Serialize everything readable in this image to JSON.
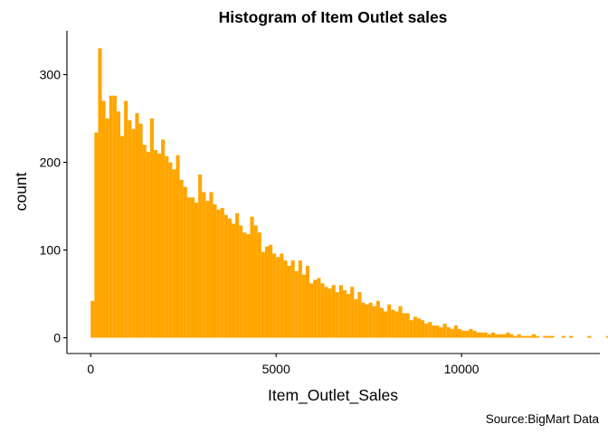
{
  "chart_data": {
    "type": "bar",
    "title": "Histogram of Item Outlet sales",
    "xlabel": "Item_Outlet_Sales",
    "ylabel": "count",
    "caption": "Source:BigMart Data",
    "bar_color": "#FFA500",
    "xlim": [
      -640,
      13730
    ],
    "ylim": [
      -18,
      350
    ],
    "xticks": [
      0,
      5000,
      10000
    ],
    "xtick_labels": [
      "0",
      "5000",
      "10000"
    ],
    "yticks": [
      0,
      100,
      200,
      300
    ],
    "ytick_labels": [
      "0",
      "100",
      "200",
      "300"
    ],
    "bin_width": 100,
    "bin_start": 0,
    "grid": false,
    "legend": "none",
    "values": [
      42,
      234,
      330,
      270,
      250,
      276,
      276,
      258,
      230,
      270,
      248,
      238,
      256,
      244,
      220,
      212,
      250,
      214,
      210,
      226,
      207,
      200,
      192,
      208,
      180,
      172,
      160,
      160,
      154,
      186,
      166,
      156,
      166,
      152,
      146,
      148,
      140,
      136,
      130,
      142,
      128,
      120,
      118,
      138,
      128,
      120,
      98,
      104,
      106,
      96,
      92,
      96,
      88,
      82,
      88,
      76,
      88,
      72,
      82,
      62,
      66,
      68,
      62,
      58,
      56,
      60,
      52,
      60,
      54,
      50,
      58,
      44,
      52,
      40,
      38,
      40,
      36,
      42,
      34,
      30,
      38,
      32,
      30,
      36,
      28,
      28,
      20,
      24,
      22,
      20,
      16,
      18,
      14,
      14,
      12,
      16,
      12,
      10,
      14,
      10,
      8,
      8,
      10,
      8,
      6,
      6,
      6,
      4,
      6,
      4,
      4,
      4,
      6,
      4,
      2,
      4,
      2,
      2,
      2,
      4,
      2,
      0,
      2,
      2,
      2,
      0,
      0,
      2,
      0,
      2,
      0,
      0,
      0,
      0,
      2,
      0,
      0,
      0,
      0,
      2,
      0,
      0,
      0,
      0,
      2,
      0,
      0,
      0,
      0,
      0,
      0,
      0,
      0,
      0,
      0,
      0,
      0,
      2,
      0,
      0,
      0,
      0,
      0,
      0,
      0,
      0,
      0,
      0,
      2,
      0,
      0,
      0,
      0,
      0,
      0,
      0,
      0,
      0,
      0,
      0,
      0,
      0,
      0,
      0,
      0,
      0,
      0,
      0,
      0,
      0,
      0,
      0,
      0,
      0,
      0,
      0,
      0,
      0,
      0,
      0,
      0,
      0,
      0,
      0,
      0,
      0,
      0,
      0,
      0,
      0,
      2
    ]
  }
}
